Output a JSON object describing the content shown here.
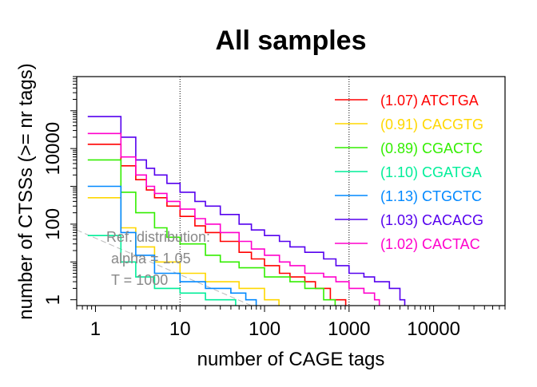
{
  "chart_data": {
    "type": "line",
    "title": "All samples",
    "xlabel": "number of CAGE tags",
    "ylabel": "number of CTSSs (>= nr tags)",
    "x_scale": "log",
    "y_scale": "log",
    "xlim": [
      0.6,
      70000
    ],
    "ylim": [
      0.7,
      800000
    ],
    "x_ticks": [
      1,
      10,
      100,
      1000,
      10000
    ],
    "x_tick_labels": [
      "1",
      "10",
      "100",
      "1000",
      "10000"
    ],
    "y_ticks": [
      1,
      100,
      10000
    ],
    "y_tick_labels": [
      "1",
      "100",
      "10000"
    ],
    "vlines": [
      10,
      1000
    ],
    "legend_position": "top-right",
    "series": [
      {
        "name": "(1.07) ATCTGA",
        "color": "#ff0000",
        "alpha": "1.07",
        "x": [
          1,
          2,
          3,
          4,
          5,
          7,
          10,
          15,
          20,
          30,
          50,
          70,
          100,
          150,
          200,
          300,
          400,
          500,
          600,
          800
        ],
        "y": [
          13000,
          3500,
          1500,
          800,
          500,
          300,
          160,
          90,
          60,
          35,
          18,
          12,
          8,
          5,
          4,
          3,
          2,
          2,
          1,
          1
        ]
      },
      {
        "name": "(0.91) CACGTG",
        "color": "#ffd700",
        "alpha": "0.91",
        "x": [
          1,
          2,
          3,
          5,
          10,
          20,
          50,
          100,
          130
        ],
        "y": [
          500,
          80,
          25,
          10,
          5,
          3,
          2,
          1,
          1
        ]
      },
      {
        "name": "(0.89) CGACTC",
        "color": "#33ee00",
        "alpha": "0.89",
        "x": [
          1,
          2,
          3,
          5,
          7,
          10,
          20,
          30,
          50,
          100,
          200,
          300,
          500,
          600
        ],
        "y": [
          5000,
          700,
          200,
          80,
          45,
          30,
          15,
          10,
          7,
          4,
          3,
          2,
          1,
          1
        ]
      },
      {
        "name": "(1.10) CGATGA",
        "color": "#00ee99",
        "alpha": "1.10",
        "x": [
          1,
          2,
          3,
          5,
          10,
          20,
          30,
          40
        ],
        "y": [
          50,
          10,
          4,
          2,
          1.5,
          1,
          1,
          1
        ]
      },
      {
        "name": "(1.13) CTGCTC",
        "color": "#0088ff",
        "alpha": "1.13",
        "x": [
          1,
          2,
          3,
          5,
          10,
          20,
          40,
          60,
          70
        ],
        "y": [
          1000,
          60,
          15,
          5,
          3,
          2,
          1.5,
          1,
          1
        ]
      },
      {
        "name": "(1.03) CACACG",
        "color": "#5500ee",
        "alpha": "1.03",
        "x": [
          1,
          2,
          3,
          4,
          5,
          7,
          10,
          15,
          20,
          30,
          50,
          70,
          100,
          150,
          200,
          300,
          500,
          700,
          1000,
          1500,
          2000,
          3000,
          4000
        ],
        "y": [
          70000,
          20000,
          5000,
          3000,
          2000,
          1200,
          700,
          400,
          300,
          180,
          100,
          70,
          50,
          35,
          25,
          18,
          12,
          8,
          5,
          4,
          3,
          2,
          1
        ]
      },
      {
        "name": "(1.02) CACTAC",
        "color": "#ff00cc",
        "alpha": "1.02",
        "x": [
          1,
          2,
          3,
          4,
          5,
          7,
          10,
          15,
          20,
          30,
          50,
          70,
          100,
          150,
          200,
          300,
          500,
          700,
          1000,
          1500,
          2000
        ],
        "y": [
          25000,
          6000,
          2000,
          1000,
          650,
          400,
          250,
          140,
          100,
          60,
          35,
          22,
          15,
          10,
          8,
          5,
          4,
          3,
          2,
          1.5,
          1
        ]
      }
    ],
    "reference": {
      "lines": [
        "Ref. distribution:",
        "alpha = 1.05",
        "T = 1000"
      ],
      "color": "#bbbbbb",
      "x": [
        0.6,
        70
      ],
      "y": [
        70,
        0.7
      ]
    }
  }
}
